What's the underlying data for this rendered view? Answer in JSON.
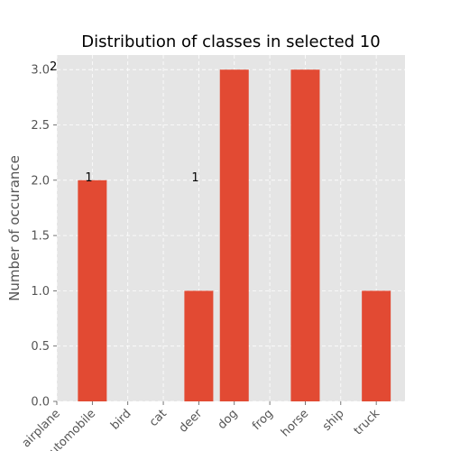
{
  "chart_data": {
    "type": "bar",
    "title": "Distribution of classes in selected 10",
    "xlabel": "",
    "ylabel": "Number of occurance",
    "categories": [
      "airplane",
      "automobile",
      "bird",
      "cat",
      "deer",
      "dog",
      "frog",
      "horse",
      "ship",
      "truck"
    ],
    "values": [
      0,
      2,
      0,
      0,
      1,
      3,
      0,
      3,
      0,
      1
    ],
    "ylim": [
      0,
      3.15
    ],
    "yticks": [
      "0.0",
      "0.5",
      "1.0",
      "1.5",
      "2.0",
      "2.5",
      "3.0"
    ],
    "grid": true,
    "bar_color": "#E24A33",
    "background_color": "#E5E5E5",
    "annotations": [
      {
        "text": "2",
        "x": "airplane",
        "y": 3.0
      },
      {
        "text": "1",
        "x": "automobile",
        "y": 2.0
      },
      {
        "text": "1",
        "x": "deer",
        "y": 2.0
      }
    ]
  }
}
